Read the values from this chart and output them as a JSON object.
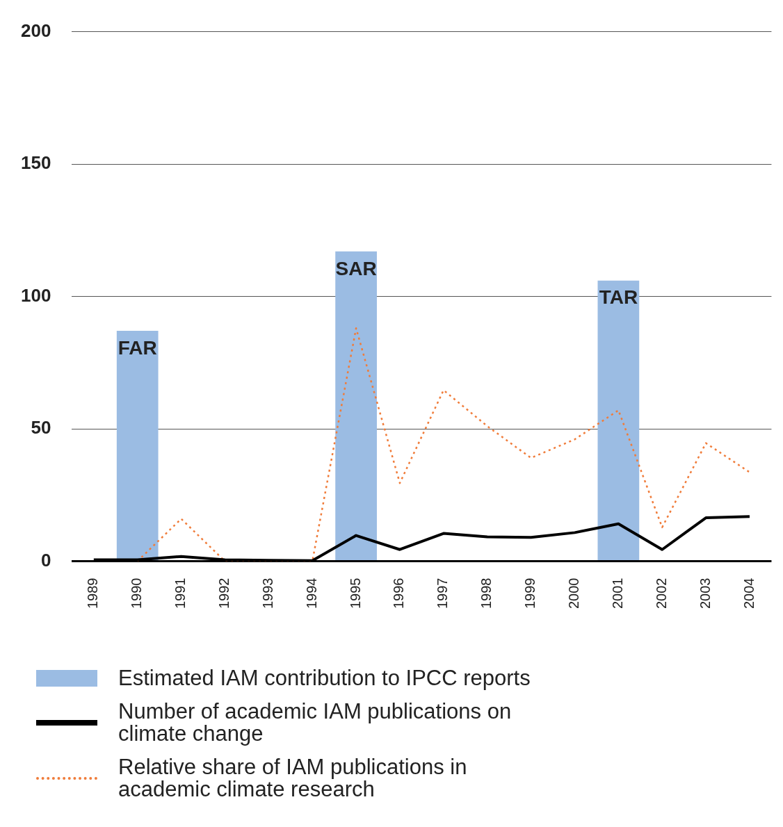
{
  "chart_data": {
    "type": "bar",
    "categories": [
      "1989",
      "1990",
      "1991",
      "1992",
      "1993",
      "1994",
      "1995",
      "1996",
      "1997",
      "1998",
      "1999",
      "2000",
      "2001",
      "2002",
      "2003",
      "2004"
    ],
    "series": [
      {
        "name": "Estimated IAM contribution to IPCC reports",
        "color": "#9bbce3",
        "values": [
          null,
          87,
          null,
          null,
          null,
          null,
          117,
          null,
          null,
          null,
          null,
          null,
          106,
          null,
          null,
          null
        ]
      },
      {
        "name": "Number of academic IAM publications on climate change",
        "type": "line",
        "color": "#000000",
        "line_style": "solid",
        "values": [
          0.5,
          0.5,
          1.8,
          0.5,
          0.3,
          0.2,
          9.7,
          4.4,
          10.5,
          9.2,
          9,
          10.8,
          14.1,
          4.4,
          16.4,
          16.9
        ]
      },
      {
        "name": "Relative share of IAM publications in academic climate research",
        "type": "line",
        "color": "#f07c3a",
        "line_style": "dotted",
        "values": [
          null,
          0,
          16,
          0,
          0,
          0,
          88,
          29.5,
          64.6,
          51,
          39,
          46,
          57,
          12.8,
          44.6,
          33.6
        ]
      }
    ],
    "ylim": [
      0,
      200
    ],
    "yticks": [
      0,
      50,
      100,
      150,
      200
    ],
    "grid": "y",
    "legend": "bottom",
    "marker": "none",
    "annotations": [
      {
        "text": "FAR",
        "x": "1990",
        "y": 87
      },
      {
        "text": "SAR",
        "x": "1995",
        "y": 117
      },
      {
        "text": "TAR",
        "x": "2001",
        "y": 106
      }
    ]
  }
}
